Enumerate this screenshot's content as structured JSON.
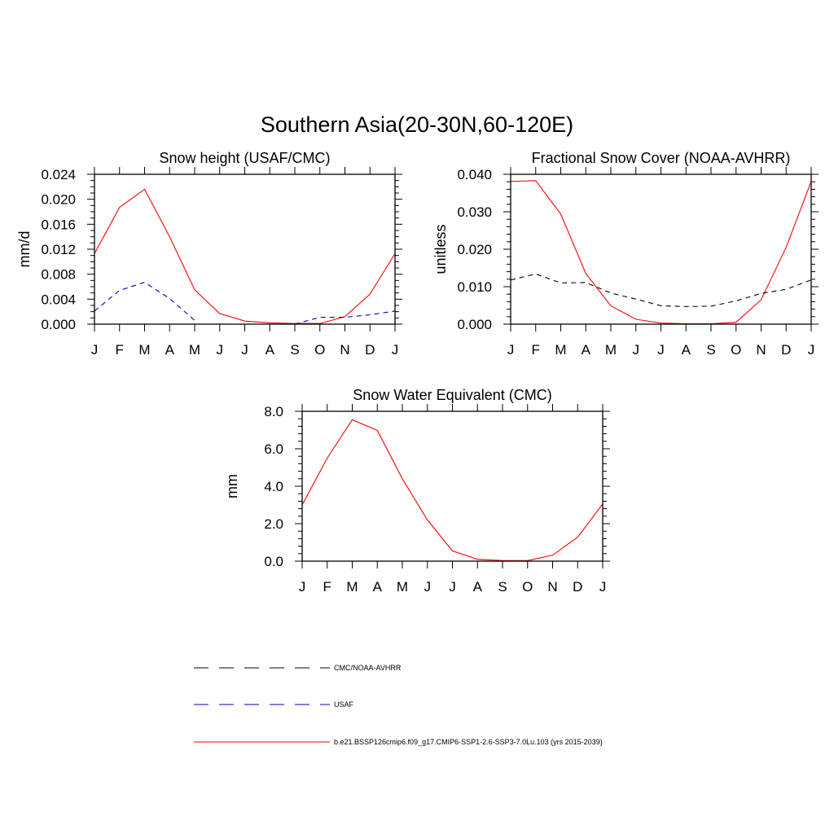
{
  "main_title": "Southern Asia(20-30N,60-120E)",
  "colors": {
    "model": "#ff0000",
    "obs_black": "#000000",
    "obs_blue": "#0000cc"
  },
  "legend": [
    {
      "label": "CMC/NOAA-AVHRR",
      "color": "#000000",
      "style": "dashed"
    },
    {
      "label": "USAF",
      "color": "#0000cc",
      "style": "dashed"
    },
    {
      "label": "b.e21.BSSP126cmip6.f09_g17.CMIP6-SSP1-2.6-SSP3-7.0Lu.103 (yrs 2015-2039)",
      "color": "#ff0000",
      "style": "solid"
    }
  ],
  "chart_data": [
    {
      "type": "line",
      "title": "Snow height (USAF/CMC)",
      "xlabel": "",
      "ylabel": "mm/d",
      "x": [
        "J",
        "F",
        "M",
        "A",
        "M",
        "J",
        "J",
        "A",
        "S",
        "O",
        "N",
        "D",
        "J"
      ],
      "ylim": [
        0,
        0.024
      ],
      "yticks": [
        "0.000",
        "0.004",
        "0.008",
        "0.012",
        "0.016",
        "0.020",
        "0.024"
      ],
      "series": [
        {
          "color": "#ff0000",
          "style": "solid",
          "values": [
            0.0113,
            0.0187,
            0.0216,
            0.014,
            0.0055,
            0.0017,
            0.0005,
            0.0002,
            0.0001,
            0.0001,
            0.0012,
            0.0048,
            0.0113
          ]
        },
        {
          "color": "#0000cc",
          "style": "dashed",
          "values": [
            0.0021,
            0.0054,
            0.0067,
            0.0041,
            0.0006,
            null,
            null,
            null,
            0.0,
            0.0011,
            0.0011,
            0.0015,
            0.0021
          ]
        }
      ]
    },
    {
      "type": "line",
      "title": "Fractional Snow Cover (NOAA-AVHRR)",
      "xlabel": "",
      "ylabel": "unitless",
      "x": [
        "J",
        "F",
        "M",
        "A",
        "M",
        "J",
        "J",
        "A",
        "S",
        "O",
        "N",
        "D",
        "J"
      ],
      "ylim": [
        0,
        0.04
      ],
      "yticks": [
        "0.000",
        "0.010",
        "0.020",
        "0.030",
        "0.040"
      ],
      "series": [
        {
          "color": "#ff0000",
          "style": "solid",
          "values": [
            0.0381,
            0.0383,
            0.0294,
            0.0135,
            0.0049,
            0.0013,
            0.0003,
            0.0001,
            0.0001,
            0.0005,
            0.0065,
            0.0205,
            0.0381
          ]
        },
        {
          "color": "#000000",
          "style": "dashed",
          "values": [
            0.0118,
            0.0134,
            0.011,
            0.0111,
            0.0083,
            0.0067,
            0.0049,
            0.0047,
            0.0048,
            0.0062,
            0.0082,
            0.0093,
            0.0118
          ]
        }
      ]
    },
    {
      "type": "line",
      "title": "Snow Water Equivalent (CMC)",
      "xlabel": "",
      "ylabel": "mm",
      "x": [
        "J",
        "F",
        "M",
        "A",
        "M",
        "J",
        "J",
        "A",
        "S",
        "O",
        "N",
        "D",
        "J"
      ],
      "ylim": [
        0,
        8.0
      ],
      "yticks": [
        "0.0",
        "2.0",
        "4.0",
        "6.0",
        "8.0"
      ],
      "series": [
        {
          "color": "#ff0000",
          "style": "solid",
          "values": [
            3.0,
            5.5,
            7.55,
            6.98,
            4.4,
            2.2,
            0.55,
            0.1,
            0.03,
            0.03,
            0.32,
            1.28,
            3.05
          ]
        },
        {
          "color": "#000000",
          "style": "dashed",
          "values": [
            0,
            0,
            0,
            0,
            0,
            0,
            0,
            0,
            0,
            0,
            0,
            0,
            0
          ]
        }
      ]
    }
  ]
}
